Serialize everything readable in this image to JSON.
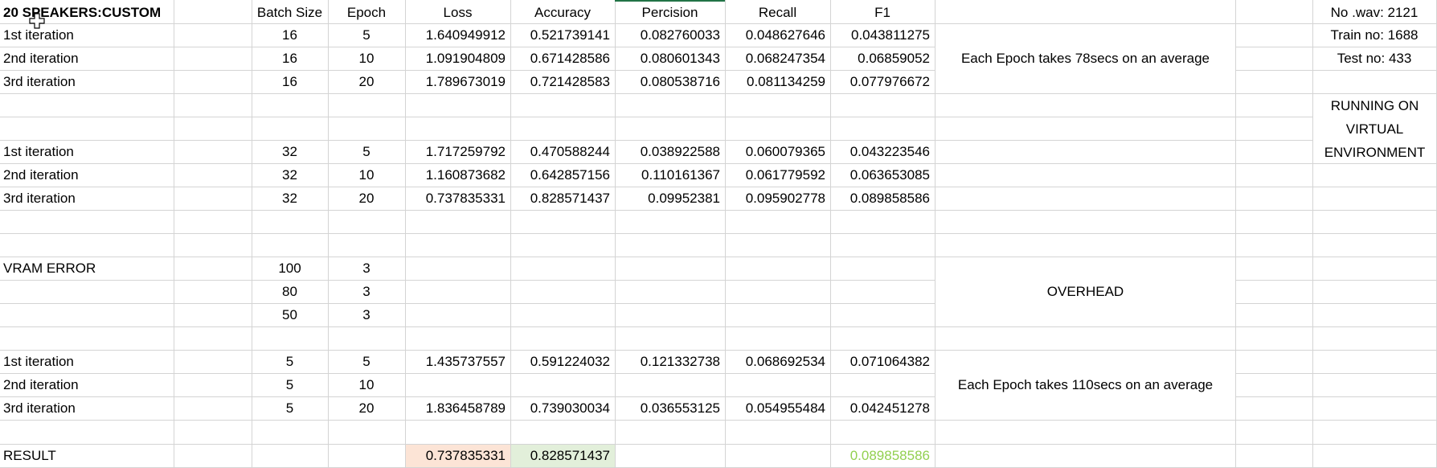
{
  "sheet": {
    "title": "20 SPEAKERS:CUSTOM",
    "headers": [
      "Batch Size",
      "Epoch",
      "Loss",
      "Accuracy",
      "Percision",
      "Recall",
      "F1"
    ],
    "group1": [
      [
        "1st iteration",
        "16",
        "5",
        "1.640949912",
        "0.521739141",
        "0.082760033",
        "0.048627646",
        "0.043811275"
      ],
      [
        "2nd iteration",
        "16",
        "10",
        "1.091904809",
        "0.671428586",
        "0.080601343",
        "0.068247354",
        "0.06859052"
      ],
      [
        "3rd iteration",
        "16",
        "20",
        "1.789673019",
        "0.721428583",
        "0.080538716",
        "0.081134259",
        "0.077976672"
      ]
    ],
    "group2": [
      [
        "1st iteration",
        "32",
        "5",
        "1.717259792",
        "0.470588244",
        "0.038922588",
        "0.060079365",
        "0.043223546"
      ],
      [
        "2nd iteration",
        "32",
        "10",
        "1.160873682",
        "0.642857156",
        "0.110161367",
        "0.061779592",
        "0.063653085"
      ],
      [
        "3rd iteration",
        "32",
        "20",
        "0.737835331",
        "0.828571437",
        "0.09952381",
        "0.095902778",
        "0.089858586"
      ]
    ],
    "vram": [
      [
        "VRAM ERROR",
        "100",
        "3"
      ],
      [
        "",
        "80",
        "3"
      ],
      [
        "",
        "50",
        "3"
      ]
    ],
    "group3": [
      [
        "1st iteration",
        "5",
        "5",
        "1.435737557",
        "0.591224032",
        "0.121332738",
        "0.068692534",
        "0.071064382"
      ],
      [
        "2nd iteration",
        "5",
        "10",
        "",
        "",
        "",
        "",
        ""
      ],
      [
        "3rd iteration",
        "5",
        "20",
        "1.836458789",
        "0.739030034",
        "0.036553125",
        "0.054955484",
        "0.042451278"
      ]
    ],
    "result": {
      "label": "RESULT",
      "loss": "0.737835331",
      "accuracy": "0.828571437",
      "f1": "0.089858586"
    },
    "notes": {
      "epoch_time_1": "Each Epoch takes 78secs on an average",
      "overhead": "OVERHEAD",
      "epoch_time_2": "Each Epoch takes 110secs on an average"
    },
    "side_info": {
      "wav": "No .wav: 2121",
      "train": "Train no: 1688",
      "test": "Test no: 433",
      "env_line1": "RUNNING ON",
      "env_line2": "VIRTUAL",
      "env_line3": "ENVIRONMENT"
    },
    "colors": {
      "loss_highlight": "#fce4d6",
      "accuracy_highlight": "#e2efda",
      "f1_text": "#92d050",
      "gridline": "#d4d4d4",
      "selected_col_border": "#217346"
    }
  }
}
